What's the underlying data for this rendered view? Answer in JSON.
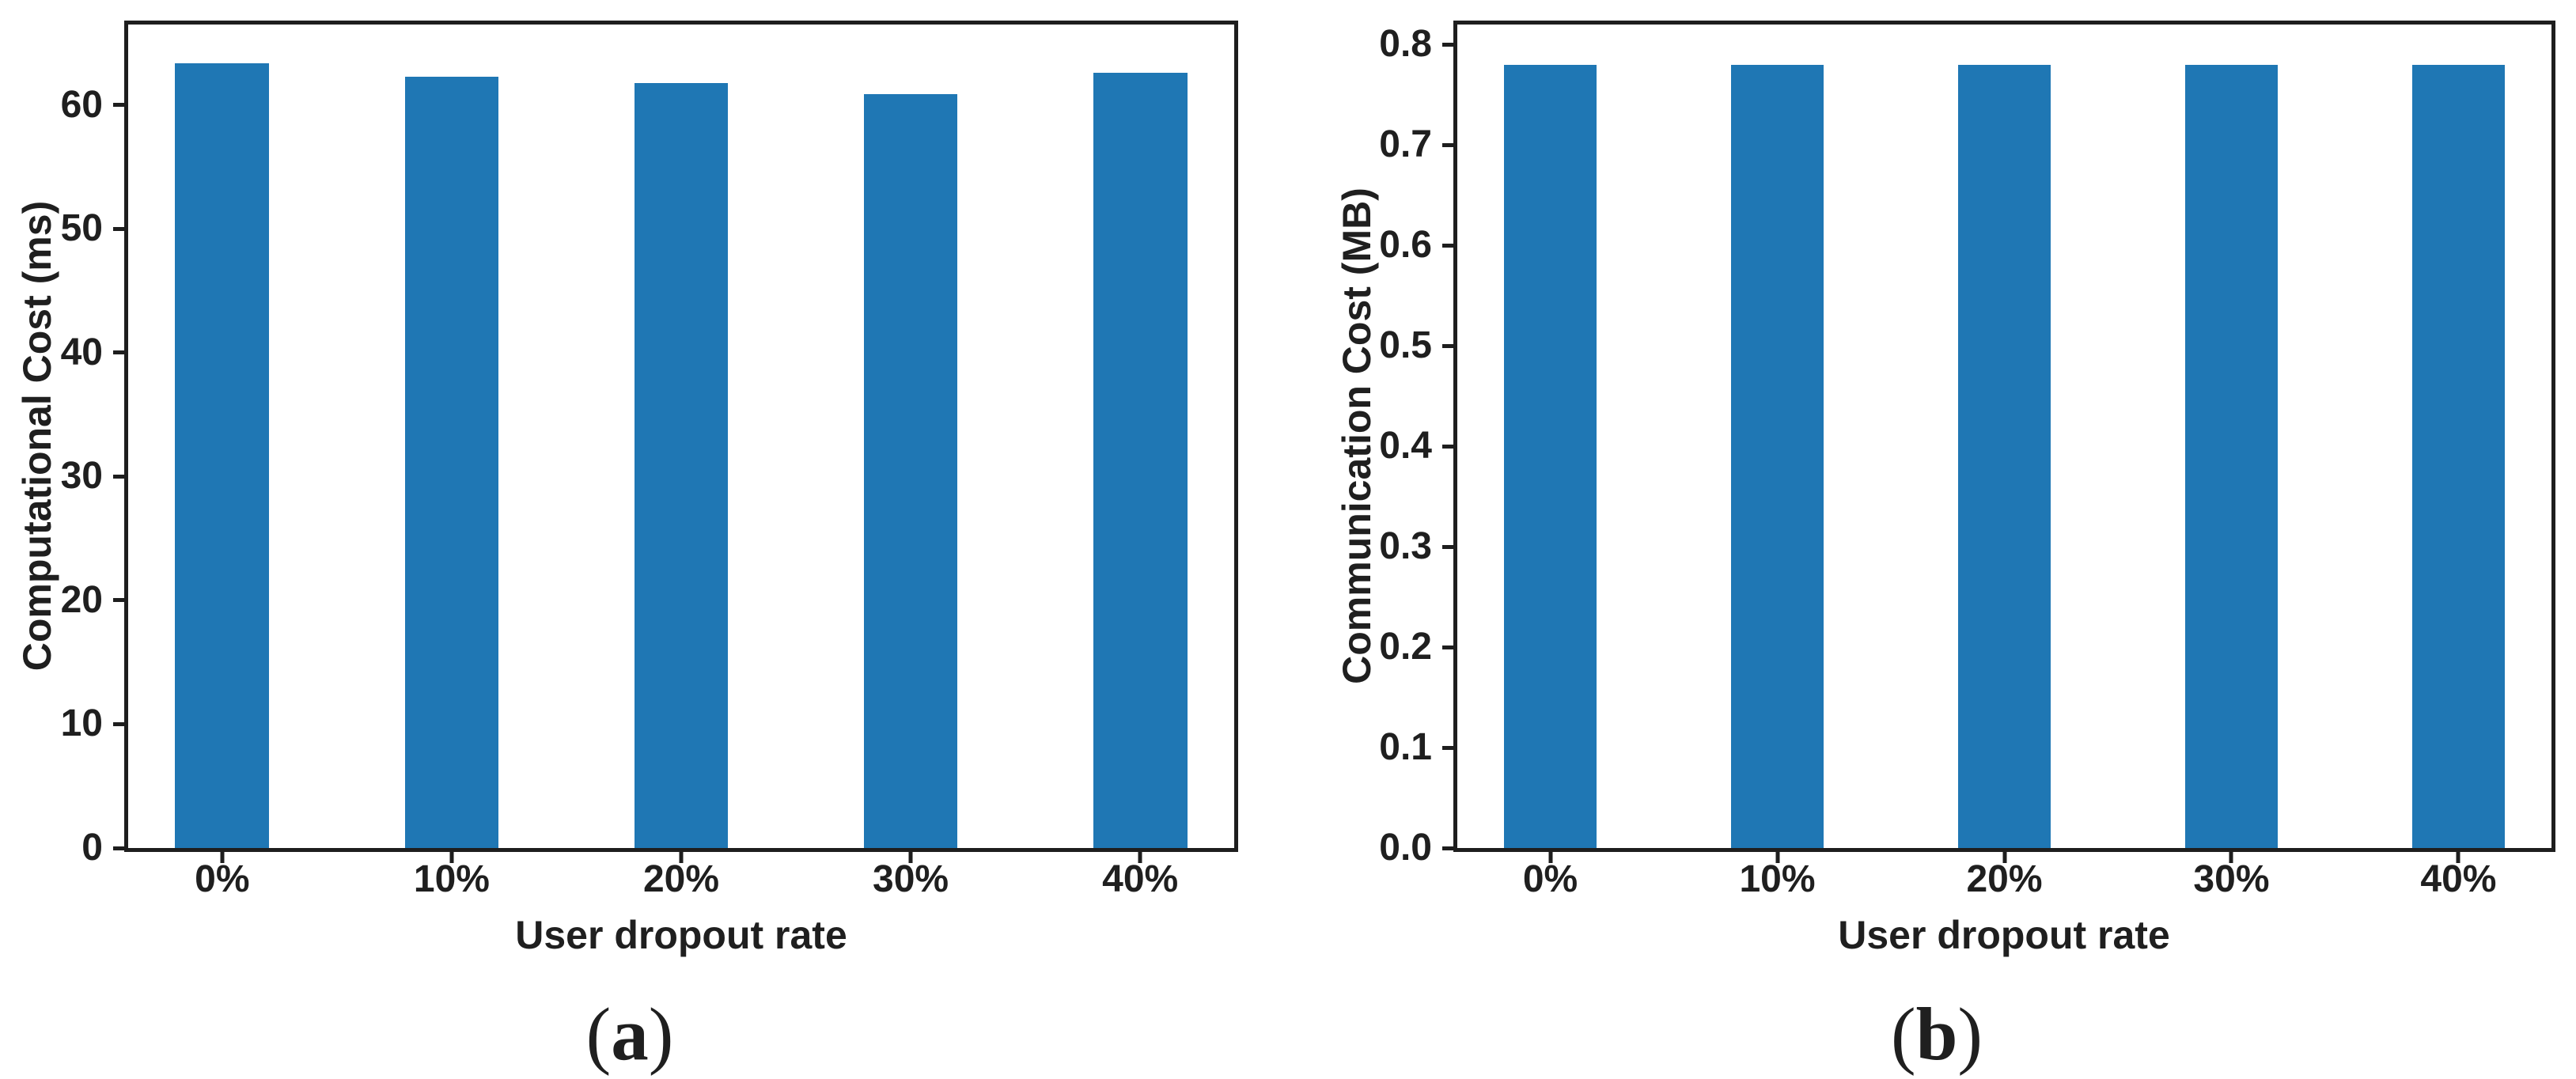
{
  "colors": {
    "bar": "#1f77b4",
    "axis": "#1e1e1e",
    "text": "#1f1f1f"
  },
  "chart_data": [
    {
      "id": "a",
      "type": "bar",
      "title": "",
      "xlabel": "User dropout rate",
      "ylabel": "Computational Cost (ms)",
      "categories": [
        "0%",
        "10%",
        "20%",
        "30%",
        "40%"
      ],
      "values": [
        63.4,
        62.3,
        61.8,
        60.9,
        62.6
      ],
      "ylim": [
        0,
        66.5
      ],
      "yticks": [
        0,
        10,
        20,
        30,
        40,
        50,
        60
      ],
      "ytick_labels": [
        "0",
        "10",
        "20",
        "30",
        "40",
        "50",
        "60"
      ],
      "grid": "off",
      "legend": "none",
      "bar_color": "#1f77b4",
      "caption": {
        "open": "(",
        "letter": "a",
        "close": ")"
      }
    },
    {
      "id": "b",
      "type": "bar",
      "title": "",
      "xlabel": "User dropout rate",
      "ylabel": "Communication Cost (MB)",
      "categories": [
        "0%",
        "10%",
        "20%",
        "30%",
        "40%"
      ],
      "values": [
        0.78,
        0.78,
        0.78,
        0.78,
        0.78
      ],
      "ylim": [
        0,
        0.82
      ],
      "yticks": [
        0.0,
        0.1,
        0.2,
        0.3,
        0.4,
        0.5,
        0.6,
        0.7,
        0.8
      ],
      "ytick_labels": [
        "0.0",
        "0.1",
        "0.2",
        "0.3",
        "0.4",
        "0.5",
        "0.6",
        "0.7",
        "0.8"
      ],
      "grid": "off",
      "legend": "none",
      "bar_color": "#1f77b4",
      "caption": {
        "open": "(",
        "letter": "b",
        "close": ")"
      }
    }
  ]
}
